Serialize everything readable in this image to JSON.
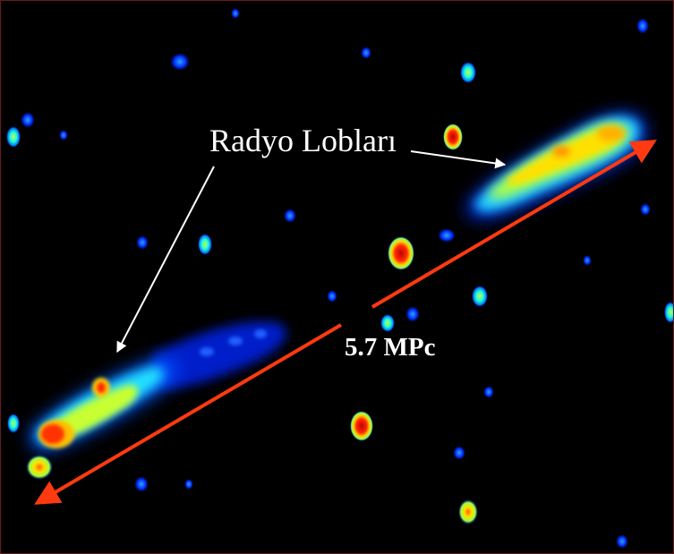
{
  "image": {
    "lobes_label": "Radyo Lobları",
    "scale_label": "5.7 MPc"
  },
  "colors": {
    "background": "#000000",
    "frame": "#6b1a1a",
    "arrow": "#ff3a10",
    "pointer": "#ffffff",
    "label": "#ffffff"
  }
}
